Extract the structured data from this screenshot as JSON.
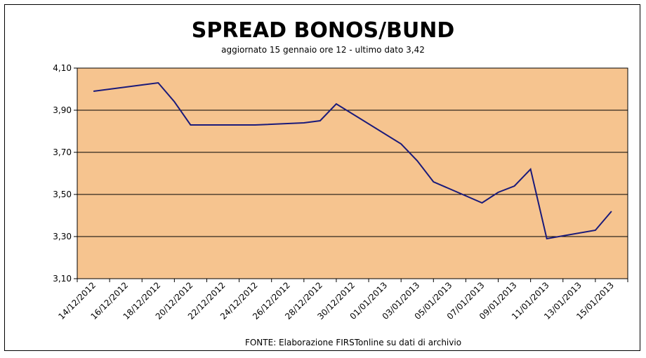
{
  "chart_data": {
    "type": "line",
    "title": "SPREAD BONOS/BUND",
    "subtitle": "aggiornato 15 gennaio ore 12 - ultimo dato 3,42",
    "source": "FONTE: Elaborazione FIRSTonline su dati di archivio",
    "ylim": [
      3.1,
      4.1
    ],
    "yticks": [
      "4,10",
      "3,90",
      "3,70",
      "3,50",
      "3,30",
      "3,10"
    ],
    "ytick_values": [
      4.1,
      3.9,
      3.7,
      3.5,
      3.3,
      3.1
    ],
    "x_tick_labels": [
      "14/12/2012",
      "16/12/2012",
      "18/12/2012",
      "20/12/2012",
      "22/12/2012",
      "24/12/2012",
      "26/12/2012",
      "28/12/2012",
      "30/12/2012",
      "01/01/2013",
      "03/01/2013",
      "05/01/2013",
      "07/01/2013",
      "09/01/2013",
      "11/01/2013",
      "13/01/2013",
      "15/01/2013"
    ],
    "x": [
      "14/12/2012",
      "17/12/2012",
      "18/12/2012",
      "19/12/2012",
      "20/12/2012",
      "21/12/2012",
      "24/12/2012",
      "27/12/2012",
      "28/12/2012",
      "29/12/2012",
      "02/01/2013",
      "03/01/2013",
      "04/01/2013",
      "07/01/2013",
      "08/01/2013",
      "09/01/2013",
      "10/01/2013",
      "11/01/2013",
      "14/01/2013",
      "15/01/2013"
    ],
    "series": [
      {
        "values": [
          3.99,
          4.02,
          4.03,
          3.94,
          3.83,
          3.83,
          3.83,
          3.84,
          3.85,
          3.93,
          3.74,
          3.66,
          3.56,
          3.46,
          3.51,
          3.54,
          3.62,
          3.29,
          3.33,
          3.42
        ],
        "color": "#1a1a7a"
      }
    ],
    "plot_background": "#f6c48f",
    "grid": true
  }
}
